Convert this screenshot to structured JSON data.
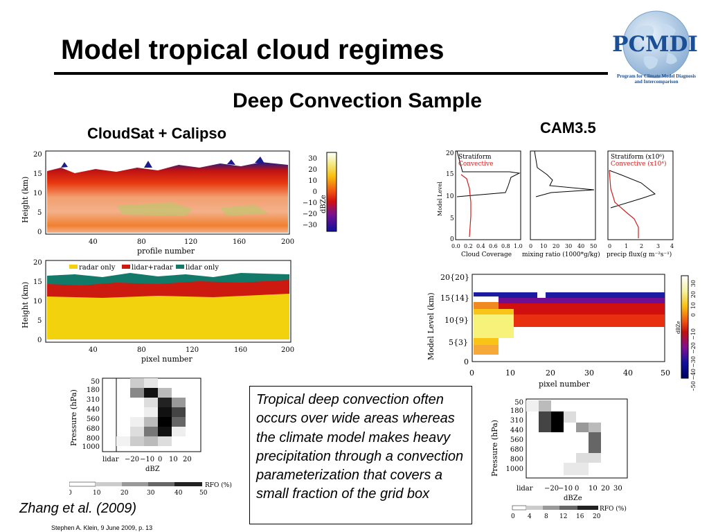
{
  "slide": {
    "title": "Model tropical cloud regimes",
    "subtitle": "Deep Convection Sample",
    "label_obs": "CloudSat + Calipso",
    "label_model": "CAM3.5",
    "callout": "Tropical deep convection often occurs over wide areas whereas the climate model makes heavy precipitation through a convection parameterization that covers a small fraction of the grid box",
    "citation": "Zhang et al. (2009)",
    "footer": "Stephen A. Klein, 9 June 2009, p. 13"
  },
  "logo": {
    "name": "PCMDI",
    "tagline_1": "Program for Climate Model Diagnosis",
    "tagline_2": "and Intercomparison",
    "globe_color": "#a9c6e2",
    "text_color": "#1a4f95"
  },
  "panel_cloudsat_dbz": {
    "ylabel": "Height (km)",
    "xlabel": "profile number",
    "yticks": [
      "20",
      "15",
      "10",
      "5",
      "0"
    ],
    "xticks": [
      "40",
      "80",
      "120",
      "160",
      "200"
    ],
    "colorbar_label": "dBZe",
    "colorbar_ticks": [
      "30",
      "20",
      "10",
      "0",
      "−10",
      "−20",
      "−30"
    ]
  },
  "panel_cloudsat_mask": {
    "ylabel": "Height (km)",
    "xlabel": "pixel number",
    "yticks": [
      "20",
      "15",
      "10",
      "5",
      "0"
    ],
    "xticks": [
      "40",
      "80",
      "120",
      "160",
      "200"
    ],
    "legend": [
      "radar only",
      "lidar+radar",
      "lidar only"
    ],
    "colors": {
      "radar_only": "#f2d20c",
      "lidar_radar": "#cc1a10",
      "lidar_only": "#137a6a"
    }
  },
  "panel_cam_profiles": {
    "ylabel": "Model Level",
    "yticks": [
      "20",
      "15",
      "10",
      "5",
      "0"
    ],
    "p1": {
      "legend": [
        "Stratiform",
        "Convective"
      ],
      "xticks": [
        "0.0",
        "0.2",
        "0.4",
        "0.6",
        "0.8",
        "1.0"
      ],
      "xlabel": "Cloud Coverage"
    },
    "p2": {
      "xticks": [
        "0",
        "10",
        "20",
        "30",
        "40",
        "50"
      ],
      "xlabel": "mixing ratio (1000*g/kg)"
    },
    "p3": {
      "legend": [
        "Stratiform (x10⁶)",
        "Convective (x10⁴)"
      ],
      "xticks": [
        "0",
        "1",
        "2",
        "3",
        "4"
      ],
      "xlabel": "precip flux(g m⁻²s⁻¹)"
    },
    "colors": {
      "stratiform": "#000000",
      "convective": "#d01c1c"
    }
  },
  "panel_cam_dbz": {
    "ylabel": "Model Level (km)",
    "yticks": [
      "20{20}",
      "15{14}",
      "10{9}",
      "5{3}",
      "0"
    ],
    "xticks": [
      "0",
      "10",
      "20",
      "30",
      "40",
      "50"
    ],
    "xlabel": "pixel number",
    "colorbar_label": "dBZe",
    "colorbar_ticks": [
      "30",
      "20",
      "10",
      "0",
      "−10",
      "−20",
      "−30",
      "−40",
      "−50"
    ]
  },
  "panel_obs_cfad": {
    "ylabel": "Pressure (hPa)",
    "yticks": [
      "50",
      "180",
      "310",
      "440",
      "560",
      "680",
      "800",
      "1000"
    ],
    "xticks": [
      "lidar",
      "−20",
      "−10",
      "0",
      "10",
      "20"
    ],
    "xlabel": "dBZ",
    "rfo_label": "RFO (%)",
    "rfo_ticks": [
      "0",
      "10",
      "20",
      "30",
      "40",
      "50"
    ]
  },
  "panel_cam_cfad": {
    "ylabel": "Pressure (hPa)",
    "yticks": [
      "50",
      "180",
      "310",
      "440",
      "560",
      "680",
      "800",
      "1000"
    ],
    "xticks": [
      "lidar",
      "−20",
      "−10",
      "0",
      "10",
      "20",
      "30"
    ],
    "xlabel": "dBZe",
    "rfo_label": "RFO (%)",
    "rfo_ticks": [
      "0",
      "4",
      "8",
      "12",
      "16",
      "20"
    ]
  }
}
